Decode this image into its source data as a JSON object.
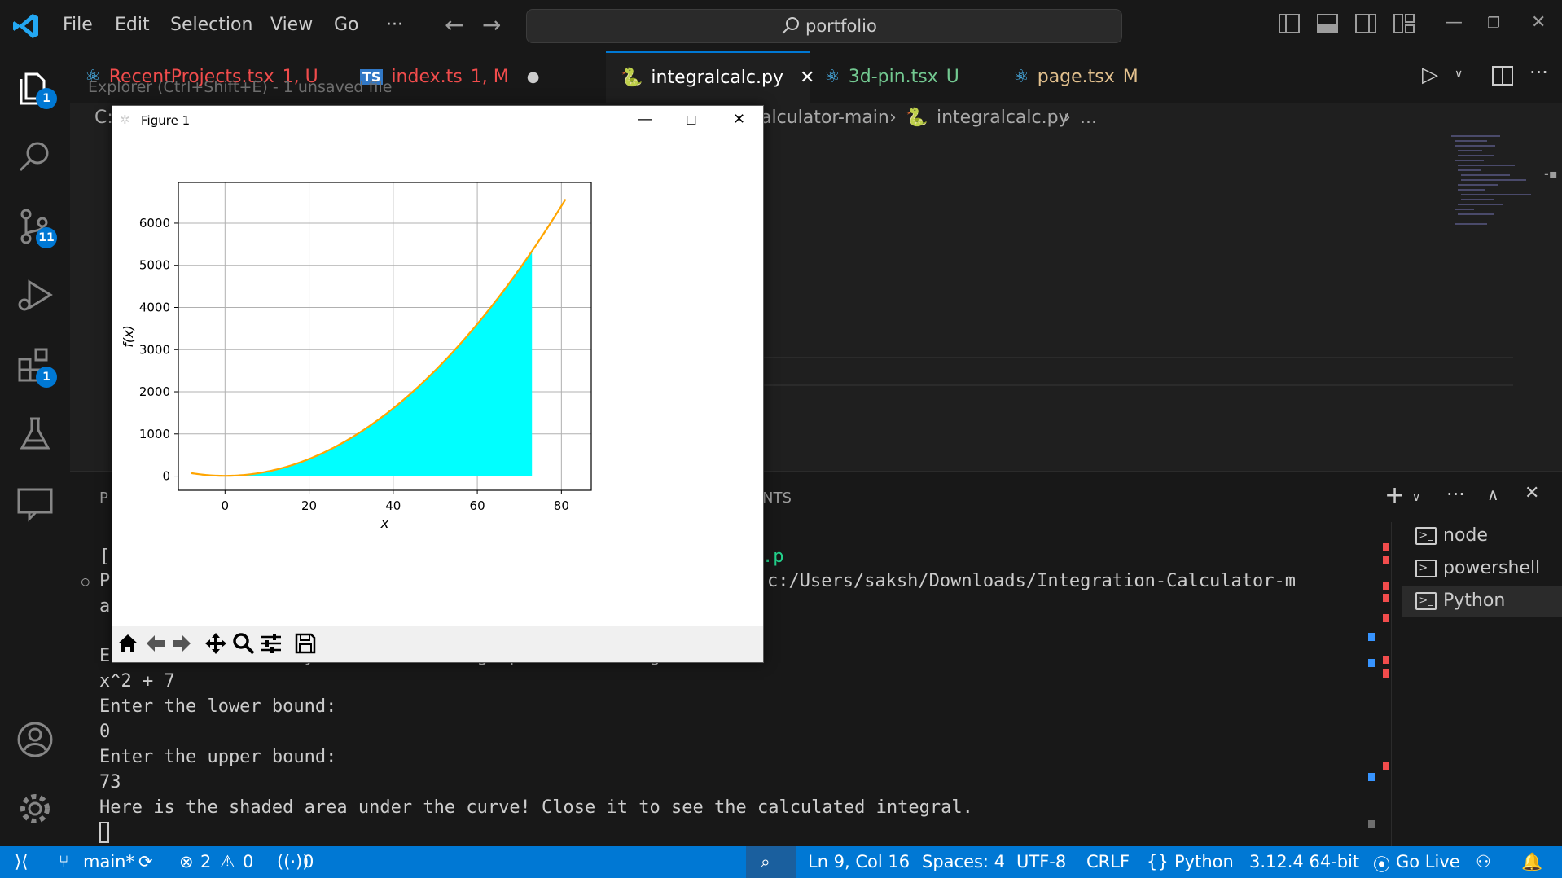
{
  "titlebar": {
    "menus": [
      "File",
      "Edit",
      "Selection",
      "View",
      "Go",
      "···"
    ],
    "search": "portfolio"
  },
  "activity": {
    "explorer_badge": "1",
    "scm_badge": "11",
    "extensions_badge": "1"
  },
  "tabs": [
    {
      "label": "RecentProjects.tsx",
      "status": "1, U",
      "color": "#f14c4c"
    },
    {
      "label": "index.ts",
      "status": "1, M",
      "color": "#f14c4c"
    },
    {
      "label": "integralcalc.py",
      "status": "",
      "color": "#ffffff"
    },
    {
      "label": "3d-pin.tsx",
      "status": "U",
      "color": "#73c991"
    },
    {
      "label": "page.tsx",
      "status": "M",
      "color": "#e2c08d"
    }
  ],
  "explorer_hover": "Explorer (Ctrl+Shift+E) - 1 unsaved file",
  "breadcrumb": {
    "drive": "C:",
    "folder": "alculator-main",
    "file": "integralcalc.py",
    "more": "..."
  },
  "panel": {
    "tab_fragment_left": "P",
    "tab_fragment_right": "NTS",
    "terminal_lines": [
      "[",
      "P",
      "a",
      "Enter the function you want to see graphed and integrated:",
      "x^2 + 7",
      "Enter the lower bound:",
      "0",
      "Enter the upper bound:",
      "73",
      "Here is the shaded area under the curve! Close it to see the calculated integral."
    ],
    "path_fragment": "c:/Users/saksh/Downloads/Integration-Calculator-m",
    "green_fragment": ".p",
    "terminals": [
      "node",
      "powershell",
      "Python"
    ]
  },
  "figure": {
    "title": "Figure 1"
  },
  "chart_data": {
    "type": "area",
    "title": "",
    "xlabel": "x",
    "ylabel": "f(x)",
    "xlim": [
      -11.1,
      87.1
    ],
    "ylim": [
      -337,
      6965
    ],
    "xticks": [
      0,
      20,
      40,
      60,
      80
    ],
    "yticks": [
      0,
      1000,
      2000,
      3000,
      4000,
      5000,
      6000
    ],
    "grid": true,
    "function": "x^2 + 7",
    "curve": {
      "x_from": -8,
      "x_to": 81,
      "color": "#ffa500"
    },
    "shaded": {
      "from": 0,
      "to": 73,
      "color": "#00ffff"
    }
  },
  "statusbar": {
    "branch": "main*",
    "errors": "2",
    "warnings": "0",
    "ports": "0",
    "position": "Ln 9, Col 16",
    "spaces": "Spaces: 4",
    "encoding": "UTF-8",
    "eol": "CRLF",
    "language": "Python",
    "interpreter": "3.12.4 64-bit",
    "golive": "Go Live"
  }
}
